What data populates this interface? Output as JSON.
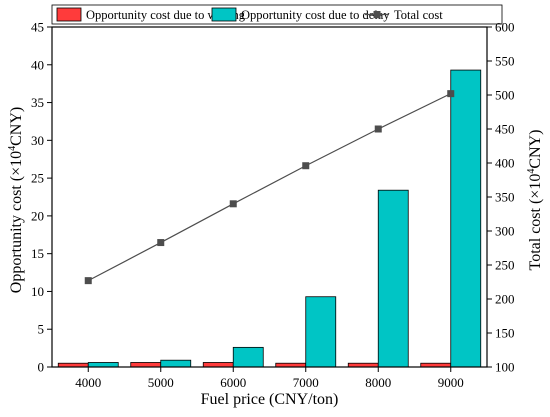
{
  "chart_data": {
    "type": "bar",
    "x": [
      4000,
      5000,
      6000,
      7000,
      8000,
      9000
    ],
    "xticks": [
      "4000",
      "5000",
      "6000",
      "7000",
      "8000",
      "9000"
    ],
    "xlabel": "Fuel price (CNY/ton)",
    "ylabel_left": {
      "prefix": "Opportunity cost (×10",
      "sup": "4",
      "suffix": "CNY)"
    },
    "ylabel_right": {
      "prefix": "Total cost (×10",
      "sup": "4",
      "suffix": "CNY)"
    },
    "ylim_left": [
      0,
      45
    ],
    "yticks_left": [
      0,
      5,
      10,
      15,
      20,
      25,
      30,
      35,
      40,
      45
    ],
    "ylim_right": [
      100,
      600
    ],
    "yticks_right": [
      100,
      150,
      200,
      250,
      300,
      350,
      400,
      450,
      500,
      550,
      600
    ],
    "series": [
      {
        "name": "Opportunity cost due to waiting",
        "kind": "bar",
        "axis": "left",
        "color": "#ff3b3b",
        "values": [
          0.5,
          0.6,
          0.6,
          0.5,
          0.5,
          0.5
        ]
      },
      {
        "name": "Opportunity cost due to delay",
        "kind": "bar",
        "axis": "left",
        "color": "#00c5c5",
        "values": [
          0.6,
          0.9,
          2.6,
          9.3,
          23.4,
          39.3
        ]
      },
      {
        "name": "Total cost",
        "kind": "line",
        "axis": "right",
        "color": "#4d4d4d",
        "marker": "square",
        "values": [
          227,
          283,
          340,
          396,
          450,
          502
        ]
      }
    ],
    "legend_position": "top",
    "grid": false
  }
}
